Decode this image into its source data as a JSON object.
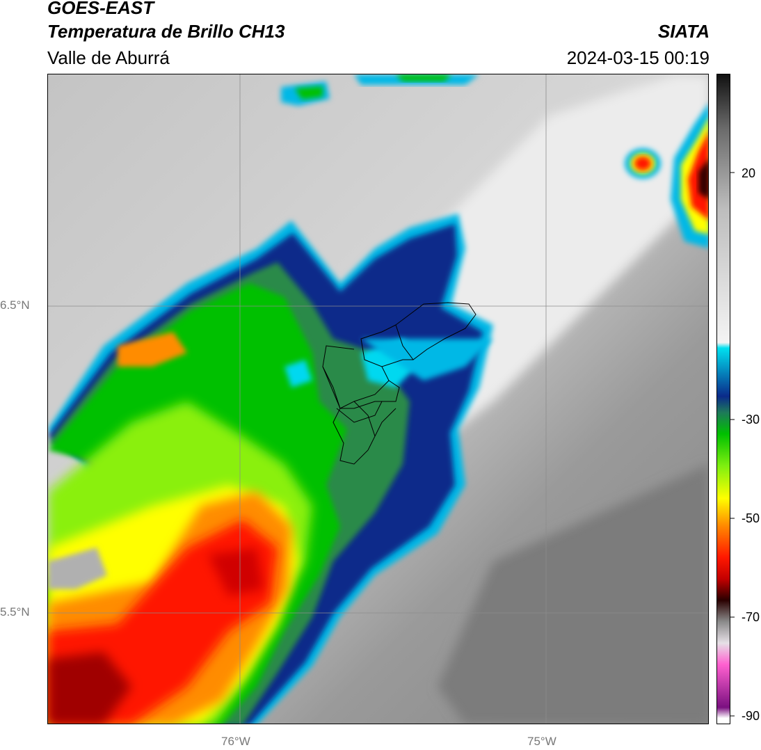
{
  "header": {
    "satellite": "GOES-EAST",
    "product": "Temperatura de Brillo CH13",
    "region": "Valle de Aburrá",
    "agency": "SIATA",
    "timestamp": "2024-03-15 00:19"
  },
  "map": {
    "lon_labels": [
      "76°W",
      "75°W"
    ],
    "lat_labels": [
      "6.5°N",
      "5.5°N"
    ],
    "gridlines": true
  },
  "colorbar": {
    "tick_labels": [
      "20",
      "-30",
      "-50",
      "-70",
      "-90"
    ],
    "stops": [
      {
        "value": 30,
        "color": "#111111"
      },
      {
        "value": 20,
        "color": "#6a6a6a"
      },
      {
        "value": 5,
        "color": "#bdbdbd"
      },
      {
        "value": -20,
        "color": "#f4f4f4"
      },
      {
        "value": -21,
        "color": "#00e0f0"
      },
      {
        "value": -30,
        "color": "#0a2a8a"
      },
      {
        "value": -33,
        "color": "#1e7a5a"
      },
      {
        "value": -37,
        "color": "#00c000"
      },
      {
        "value": -43,
        "color": "#7fef10"
      },
      {
        "value": -49,
        "color": "#ffff00"
      },
      {
        "value": -54,
        "color": "#ff8c00"
      },
      {
        "value": -60,
        "color": "#ff1800"
      },
      {
        "value": -64,
        "color": "#c40000"
      },
      {
        "value": -68,
        "color": "#2a0000"
      },
      {
        "value": -72,
        "color": "#8a8a8a"
      },
      {
        "value": -76,
        "color": "#e6e0e6"
      },
      {
        "value": -80,
        "color": "#ff60d0"
      },
      {
        "value": -88,
        "color": "#7a1080"
      },
      {
        "value": -90,
        "color": "#ffffff"
      }
    ]
  }
}
